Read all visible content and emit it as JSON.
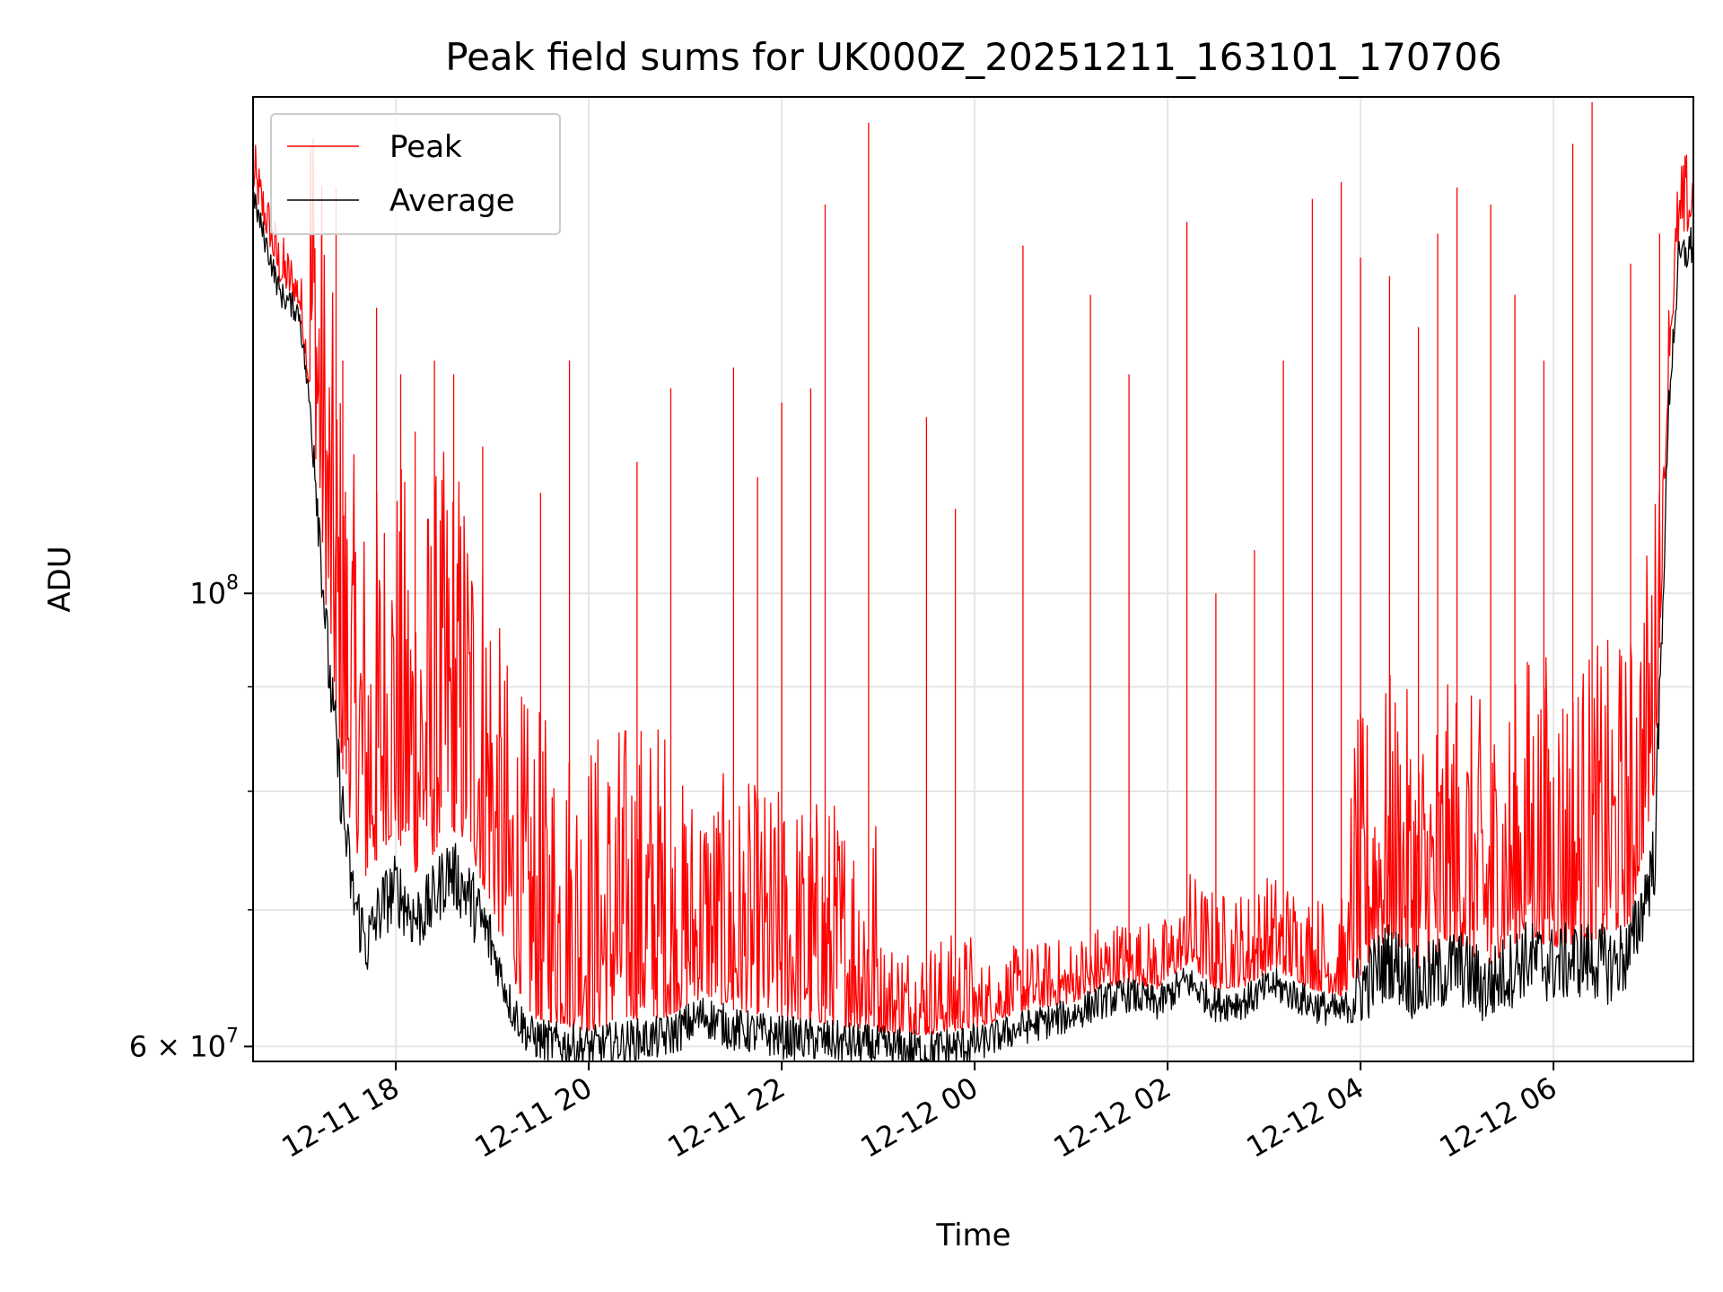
{
  "chart_data": {
    "type": "line",
    "title": "Peak field sums for UK000Z_20251211_163101_170706",
    "xlabel": "Time",
    "ylabel": "ADU",
    "yscale": "log",
    "ylim": [
      59000000,
      175000000
    ],
    "xlim_hours": [
      16.52,
      31.45
    ],
    "x_ticks": [
      {
        "hours": 18,
        "label": "12-11 18"
      },
      {
        "hours": 20,
        "label": "12-11 20"
      },
      {
        "hours": 22,
        "label": "12-11 22"
      },
      {
        "hours": 24,
        "label": "12-12 00"
      },
      {
        "hours": 26,
        "label": "12-12 02"
      },
      {
        "hours": 28,
        "label": "12-12 04"
      },
      {
        "hours": 30,
        "label": "12-12 06"
      }
    ],
    "y_major_ticks": [
      {
        "value": 60000000,
        "mantissa": "6 × 10",
        "exp": "7"
      },
      {
        "value": 100000000,
        "mantissa": "10",
        "exp": "8"
      }
    ],
    "y_minor_ticks": [
      70000000,
      80000000,
      90000000
    ],
    "grid": true,
    "legend_position": "upper-left",
    "series": [
      {
        "name": "Peak",
        "color": "#ff0000",
        "baseline": [
          [
            16.52,
            158000000
          ],
          [
            16.8,
            142000000
          ],
          [
            17.0,
            138000000
          ],
          [
            17.15,
            120000000
          ],
          [
            17.3,
            95000000
          ],
          [
            17.45,
            82000000
          ],
          [
            17.55,
            76000000
          ],
          [
            17.7,
            72000000
          ],
          [
            17.85,
            75000000
          ],
          [
            18.0,
            76000000
          ],
          [
            18.2,
            73000000
          ],
          [
            18.35,
            74000000
          ],
          [
            18.55,
            77000000
          ],
          [
            18.75,
            75000000
          ],
          [
            19.0,
            70000000
          ],
          [
            19.2,
            65000000
          ],
          [
            19.4,
            62000000
          ],
          [
            19.7,
            61500000
          ],
          [
            20.0,
            61000000
          ],
          [
            20.4,
            61800000
          ],
          [
            20.8,
            62000000
          ],
          [
            21.2,
            63500000
          ],
          [
            21.5,
            62500000
          ],
          [
            22.0,
            62000000
          ],
          [
            22.5,
            61500000
          ],
          [
            23.0,
            61000000
          ],
          [
            23.5,
            60800000
          ],
          [
            24.0,
            61200000
          ],
          [
            24.5,
            62500000
          ],
          [
            25.0,
            63000000
          ],
          [
            25.3,
            64000000
          ],
          [
            25.6,
            64500000
          ],
          [
            25.9,
            64000000
          ],
          [
            26.2,
            65800000
          ],
          [
            26.5,
            64000000
          ],
          [
            26.8,
            64200000
          ],
          [
            27.1,
            65500000
          ],
          [
            27.5,
            64000000
          ],
          [
            27.8,
            63500000
          ],
          [
            28.0,
            65000000
          ],
          [
            28.3,
            68000000
          ],
          [
            28.6,
            65500000
          ],
          [
            29.0,
            67500000
          ],
          [
            29.3,
            65500000
          ],
          [
            29.7,
            68000000
          ],
          [
            30.0,
            67000000
          ],
          [
            30.3,
            67500000
          ],
          [
            30.6,
            68000000
          ],
          [
            30.8,
            69000000
          ],
          [
            31.05,
            80000000
          ],
          [
            31.2,
            130000000
          ],
          [
            31.3,
            148000000
          ],
          [
            31.45,
            152000000
          ]
        ],
        "noise_bands": [
          [
            16.52,
            17.1,
            0.06
          ],
          [
            17.1,
            19.0,
            0.55
          ],
          [
            19.0,
            20.8,
            0.42
          ],
          [
            20.8,
            22.0,
            0.3
          ],
          [
            22.0,
            23.0,
            0.3
          ],
          [
            23.0,
            24.0,
            0.12
          ],
          [
            24.0,
            26.2,
            0.08
          ],
          [
            26.2,
            27.9,
            0.12
          ],
          [
            27.9,
            29.7,
            0.35
          ],
          [
            29.7,
            31.1,
            0.4
          ],
          [
            31.1,
            31.45,
            0.1
          ]
        ],
        "spikes": [
          [
            17.02,
            136000000
          ],
          [
            17.38,
            158000000
          ],
          [
            17.45,
            130000000
          ],
          [
            17.8,
            138000000
          ],
          [
            18.05,
            128000000
          ],
          [
            18.2,
            120000000
          ],
          [
            18.4,
            130000000
          ],
          [
            18.6,
            128000000
          ],
          [
            18.9,
            118000000
          ],
          [
            19.5,
            112000000
          ],
          [
            19.8,
            130000000
          ],
          [
            20.5,
            116000000
          ],
          [
            20.85,
            126000000
          ],
          [
            21.5,
            129000000
          ],
          [
            21.75,
            114000000
          ],
          [
            22.0,
            124000000
          ],
          [
            22.3,
            126000000
          ],
          [
            22.45,
            155000000
          ],
          [
            22.9,
            170000000
          ],
          [
            23.5,
            122000000
          ],
          [
            23.8,
            110000000
          ],
          [
            24.5,
            148000000
          ],
          [
            25.2,
            140000000
          ],
          [
            25.6,
            128000000
          ],
          [
            26.2,
            152000000
          ],
          [
            26.5,
            100000000
          ],
          [
            26.9,
            105000000
          ],
          [
            27.2,
            130000000
          ],
          [
            27.5,
            156000000
          ],
          [
            27.8,
            159000000
          ],
          [
            28.0,
            146000000
          ],
          [
            28.3,
            143000000
          ],
          [
            28.6,
            135000000
          ],
          [
            28.8,
            150000000
          ],
          [
            29.0,
            158000000
          ],
          [
            29.35,
            155000000
          ],
          [
            29.6,
            140000000
          ],
          [
            29.9,
            130000000
          ],
          [
            30.2,
            166000000
          ],
          [
            30.4,
            174000000
          ],
          [
            30.8,
            145000000
          ],
          [
            31.1,
            150000000
          ]
        ]
      },
      {
        "name": "Average",
        "color": "#000000",
        "baseline": [
          [
            16.52,
            156000000
          ],
          [
            16.8,
            140000000
          ],
          [
            17.0,
            137000000
          ],
          [
            17.15,
            118000000
          ],
          [
            17.3,
            92000000
          ],
          [
            17.45,
            78000000
          ],
          [
            17.55,
            71000000
          ],
          [
            17.7,
            67000000
          ],
          [
            17.85,
            70000000
          ],
          [
            18.0,
            71500000
          ],
          [
            18.2,
            69000000
          ],
          [
            18.35,
            70000000
          ],
          [
            18.55,
            73000000
          ],
          [
            18.75,
            71000000
          ],
          [
            19.0,
            67000000
          ],
          [
            19.2,
            62500000
          ],
          [
            19.4,
            60500000
          ],
          [
            19.7,
            60000000
          ],
          [
            20.0,
            59800000
          ],
          [
            20.4,
            60200000
          ],
          [
            20.8,
            60500000
          ],
          [
            21.2,
            62000000
          ],
          [
            21.5,
            61000000
          ],
          [
            22.0,
            60500000
          ],
          [
            22.5,
            60200000
          ],
          [
            23.0,
            59800000
          ],
          [
            23.5,
            59500000
          ],
          [
            24.0,
            60000000
          ],
          [
            24.5,
            61200000
          ],
          [
            25.0,
            62000000
          ],
          [
            25.3,
            63000000
          ],
          [
            25.6,
            63500000
          ],
          [
            25.9,
            62800000
          ],
          [
            26.2,
            64500000
          ],
          [
            26.5,
            62800000
          ],
          [
            26.8,
            63000000
          ],
          [
            27.1,
            64200000
          ],
          [
            27.5,
            62800000
          ],
          [
            27.8,
            62200000
          ],
          [
            28.0,
            63800000
          ],
          [
            28.3,
            66000000
          ],
          [
            28.6,
            64000000
          ],
          [
            29.0,
            65500000
          ],
          [
            29.3,
            63800000
          ],
          [
            29.7,
            66000000
          ],
          [
            30.0,
            65500000
          ],
          [
            30.3,
            66000000
          ],
          [
            30.6,
            65500000
          ],
          [
            30.8,
            66500000
          ],
          [
            31.05,
            74000000
          ],
          [
            31.2,
            125000000
          ],
          [
            31.3,
            145000000
          ],
          [
            31.45,
            148000000
          ]
        ],
        "noise_bands": [
          [
            16.52,
            17.1,
            0.03
          ],
          [
            17.1,
            19.0,
            0.08
          ],
          [
            19.0,
            24.0,
            0.05
          ],
          [
            24.0,
            27.9,
            0.04
          ],
          [
            27.9,
            31.1,
            0.09
          ],
          [
            31.1,
            31.45,
            0.05
          ]
        ]
      }
    ]
  }
}
